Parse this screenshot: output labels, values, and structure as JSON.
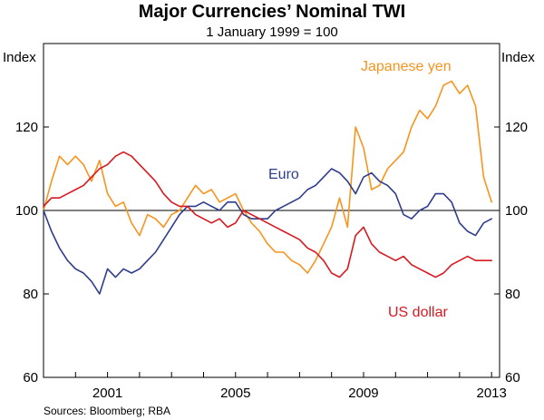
{
  "chart_data": {
    "type": "line",
    "title": "Major Currencies’ Nominal TWI",
    "subtitle": "1 January 1999 = 100",
    "ylabel_left": "Index",
    "ylabel_right": "Index",
    "ylim": [
      60,
      140
    ],
    "yticks": [
      60,
      80,
      100,
      120
    ],
    "xlim": [
      1999.0,
      2013.25
    ],
    "xticks": [
      {
        "value": 2001.0,
        "label": "2001"
      },
      {
        "value": 2005.0,
        "label": "2005"
      },
      {
        "value": 2009.0,
        "label": "2009"
      },
      {
        "value": 2013.0,
        "label": "2013"
      }
    ],
    "reference_line": 100,
    "source": "Sources: Bloomberg; RBA",
    "series": [
      {
        "name": "Japanese yen",
        "label": "Japanese yen",
        "color": "#F7941D",
        "x": [
          1999.0,
          1999.25,
          1999.5,
          1999.75,
          2000.0,
          2000.25,
          2000.5,
          2000.75,
          2001.0,
          2001.25,
          2001.5,
          2001.75,
          2002.0,
          2002.25,
          2002.5,
          2002.75,
          2003.0,
          2003.25,
          2003.5,
          2003.75,
          2004.0,
          2004.25,
          2004.5,
          2004.75,
          2005.0,
          2005.25,
          2005.5,
          2005.75,
          2006.0,
          2006.25,
          2006.5,
          2006.75,
          2007.0,
          2007.25,
          2007.5,
          2007.75,
          2008.0,
          2008.25,
          2008.5,
          2008.75,
          2009.0,
          2009.25,
          2009.5,
          2009.75,
          2010.0,
          2010.25,
          2010.5,
          2010.75,
          2011.0,
          2011.25,
          2011.5,
          2011.75,
          2012.0,
          2012.25,
          2012.5,
          2012.75,
          2013.0
        ],
        "values": [
          100,
          107,
          113,
          111,
          113,
          111,
          107,
          112,
          104,
          101,
          102,
          97,
          94,
          99,
          98,
          96,
          99,
          100,
          103,
          106,
          104,
          105,
          102,
          103,
          104,
          100,
          97,
          95,
          92,
          90,
          90,
          88,
          87,
          85,
          88,
          92,
          96,
          103,
          96,
          120,
          115,
          105,
          106,
          110,
          112,
          114,
          120,
          124,
          122,
          125,
          130,
          131,
          128,
          130,
          125,
          108,
          102
        ]
      },
      {
        "name": "Euro",
        "label": "Euro",
        "color": "#2E3C8E",
        "x": [
          1999.0,
          1999.25,
          1999.5,
          1999.75,
          2000.0,
          2000.25,
          2000.5,
          2000.75,
          2001.0,
          2001.25,
          2001.5,
          2001.75,
          2002.0,
          2002.25,
          2002.5,
          2002.75,
          2003.0,
          2003.25,
          2003.5,
          2003.75,
          2004.0,
          2004.25,
          2004.5,
          2004.75,
          2005.0,
          2005.25,
          2005.5,
          2005.75,
          2006.0,
          2006.25,
          2006.5,
          2006.75,
          2007.0,
          2007.25,
          2007.5,
          2007.75,
          2008.0,
          2008.25,
          2008.5,
          2008.75,
          2009.0,
          2009.25,
          2009.5,
          2009.75,
          2010.0,
          2010.25,
          2010.5,
          2010.75,
          2011.0,
          2011.25,
          2011.5,
          2011.75,
          2012.0,
          2012.25,
          2012.5,
          2012.75,
          2013.0
        ],
        "values": [
          100,
          95,
          91,
          88,
          86,
          85,
          83,
          80,
          86,
          84,
          86,
          85,
          86,
          88,
          90,
          93,
          96,
          99,
          101,
          101,
          102,
          101,
          100,
          102,
          102,
          99,
          98,
          98,
          98,
          100,
          101,
          102,
          103,
          105,
          106,
          108,
          110,
          109,
          107,
          104,
          108,
          109,
          107,
          106,
          104,
          99,
          98,
          100,
          101,
          104,
          104,
          102,
          97,
          95,
          94,
          97,
          98
        ]
      },
      {
        "name": "US dollar",
        "label": "US dollar",
        "color": "#D71920",
        "x": [
          1999.0,
          1999.25,
          1999.5,
          1999.75,
          2000.0,
          2000.25,
          2000.5,
          2000.75,
          2001.0,
          2001.25,
          2001.5,
          2001.75,
          2002.0,
          2002.25,
          2002.5,
          2002.75,
          2003.0,
          2003.25,
          2003.5,
          2003.75,
          2004.0,
          2004.25,
          2004.5,
          2004.75,
          2005.0,
          2005.25,
          2005.5,
          2005.75,
          2006.0,
          2006.25,
          2006.5,
          2006.75,
          2007.0,
          2007.25,
          2007.5,
          2007.75,
          2008.0,
          2008.25,
          2008.5,
          2008.75,
          2009.0,
          2009.25,
          2009.5,
          2009.75,
          2010.0,
          2010.25,
          2010.5,
          2010.75,
          2011.0,
          2011.25,
          2011.5,
          2011.75,
          2012.0,
          2012.25,
          2012.5,
          2012.75,
          2013.0
        ],
        "values": [
          101,
          103,
          103,
          104,
          105,
          106,
          108,
          110,
          111,
          113,
          114,
          113,
          111,
          109,
          107,
          104,
          102,
          101,
          101,
          99,
          98,
          97,
          98,
          96,
          97,
          100,
          99,
          98,
          97,
          96,
          95,
          94,
          93,
          91,
          90,
          88,
          85,
          84,
          86,
          94,
          96,
          92,
          90,
          89,
          88,
          89,
          87,
          86,
          85,
          84,
          85,
          87,
          88,
          89,
          88,
          88,
          88
        ]
      }
    ]
  }
}
